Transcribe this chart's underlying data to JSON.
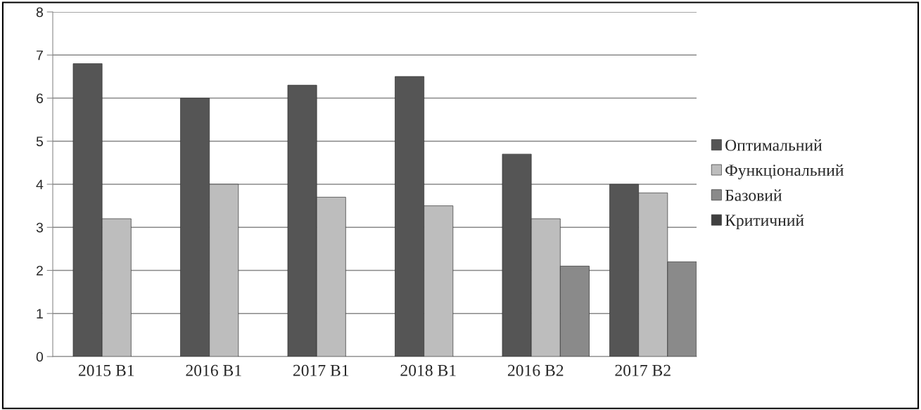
{
  "chart_data": {
    "type": "bar",
    "categories": [
      "2015 В1",
      "2016 В1",
      "2017 В1",
      "2018 В1",
      "2016 В2",
      "2017 В2"
    ],
    "series": [
      {
        "name": "Оптимальний",
        "color": "#555555",
        "values": [
          6.8,
          6.0,
          6.3,
          6.5,
          4.7,
          4.0
        ]
      },
      {
        "name": "Функціональний",
        "color": "#bdbdbd",
        "values": [
          3.2,
          4.0,
          3.7,
          3.5,
          3.2,
          3.8
        ]
      },
      {
        "name": "Базовий",
        "color": "#8a8a8a",
        "values": [
          null,
          null,
          null,
          null,
          2.1,
          2.2
        ]
      },
      {
        "name": "Критичний",
        "color": "#3f3f3f",
        "values": [
          null,
          null,
          null,
          null,
          null,
          null
        ]
      }
    ],
    "ylim": [
      0,
      8
    ],
    "yticks": [
      0,
      1,
      2,
      3,
      4,
      5,
      6,
      7,
      8
    ],
    "grid": "y",
    "legend": "right"
  }
}
